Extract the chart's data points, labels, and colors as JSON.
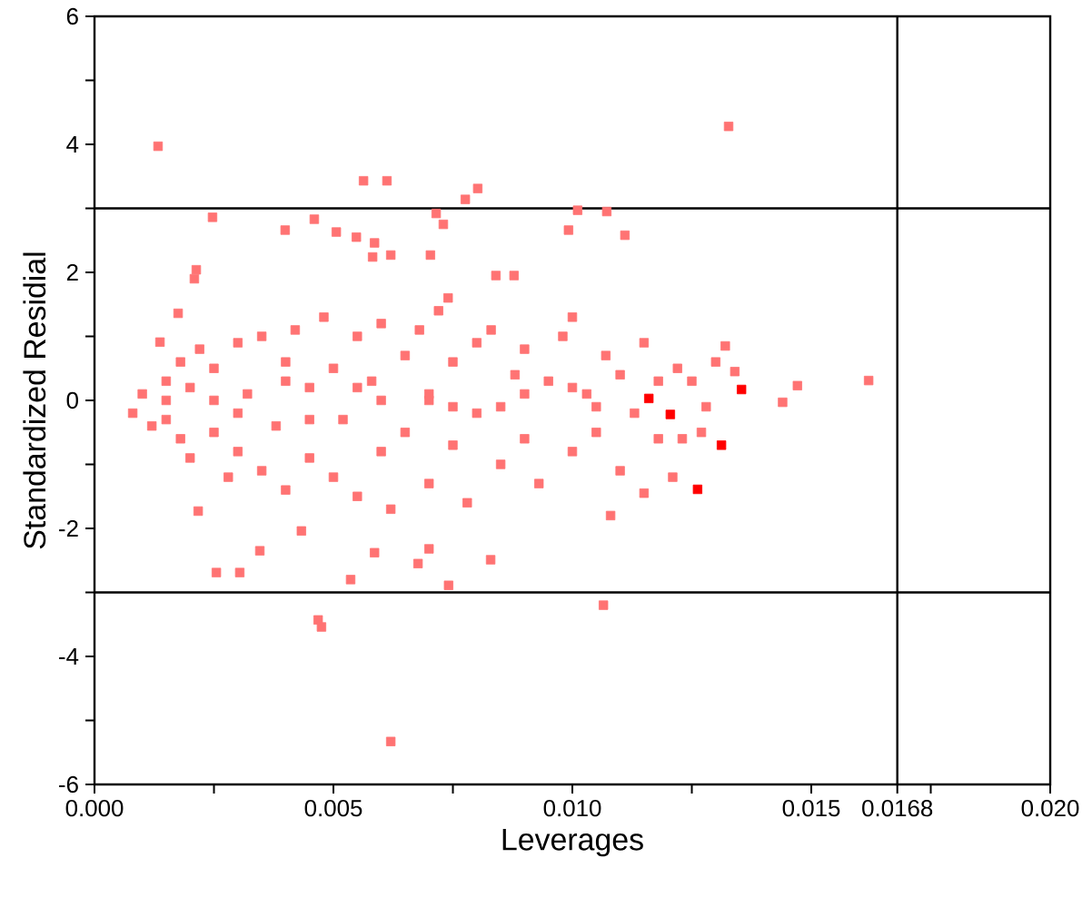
{
  "chart_data": {
    "type": "scatter",
    "xlabel": "Leverages",
    "ylabel": "Standardized Residial",
    "xlim": [
      0,
      0.02
    ],
    "ylim": [
      -6,
      6
    ],
    "xticks": [
      {
        "value": 0,
        "label": "0.000"
      },
      {
        "value": 0.0025,
        "label": null
      },
      {
        "value": 0.005,
        "label": "0.005"
      },
      {
        "value": 0.0075,
        "label": null
      },
      {
        "value": 0.01,
        "label": "0.010"
      },
      {
        "value": 0.0125,
        "label": null
      },
      {
        "value": 0.015,
        "label": "0.015"
      },
      {
        "value": 0.0168,
        "label": "0.0168"
      },
      {
        "value": 0.0175,
        "label": null
      },
      {
        "value": 0.02,
        "label": "0.020"
      }
    ],
    "yticks": [
      -6,
      {
        "value": -5,
        "label": null
      },
      -4,
      {
        "value": -3,
        "label": null
      },
      -2,
      {
        "value": -1,
        "label": null
      },
      0,
      {
        "value": 1,
        "label": null
      },
      2,
      {
        "value": 3,
        "label": null
      },
      4,
      {
        "value": 5,
        "label": null
      },
      6
    ],
    "marker": "square",
    "grid": false,
    "ref_lines": [
      {
        "axis": "y",
        "value": 3,
        "color": "#000000"
      },
      {
        "axis": "y",
        "value": -3,
        "color": "#000000"
      },
      {
        "axis": "x",
        "value": 0.0168,
        "color": "#000000"
      }
    ],
    "series": [
      {
        "color": "#ff7373",
        "x": [
          0.00133,
          0.01327,
          0.00563,
          0.00612,
          0.00776,
          0.00802,
          0.01011,
          0.01072,
          0.00992,
          0.0111,
          0.01471,
          0.0162,
          0.0144,
          0.00468,
          0.00475,
          0.0062,
          0.01065,
          0.00536,
          0.00741,
          0.00304,
          0.00255,
          0.00217,
          0.00346,
          0.00433,
          0.00677,
          0.007,
          0.00829,
          0.00586,
          0.00247,
          0.00175,
          0.00213,
          0.00209,
          0.00399,
          0.0046,
          0.00506,
          0.00548,
          0.00586,
          0.00582,
          0.0062,
          0.00703,
          0.00715,
          0.0073,
          0.0084,
          0.00878,
          0.0074,
          0.00137,
          0.0008,
          0.001,
          0.0012,
          0.0015,
          0.0015,
          0.0018,
          0.0018,
          0.002,
          0.002,
          0.0022,
          0.0025,
          0.0025,
          0.0028,
          0.003,
          0.003,
          0.0032,
          0.0035,
          0.0035,
          0.0038,
          0.004,
          0.004,
          0.0042,
          0.0045,
          0.0045,
          0.0048,
          0.005,
          0.005,
          0.0052,
          0.0055,
          0.0055,
          0.0058,
          0.006,
          0.006,
          0.0062,
          0.0065,
          0.0065,
          0.0068,
          0.007,
          0.007,
          0.0072,
          0.0075,
          0.0075,
          0.0078,
          0.008,
          0.008,
          0.0083,
          0.0085,
          0.0088,
          0.009,
          0.009,
          0.0093,
          0.0095,
          0.0098,
          0.01,
          0.01,
          0.0103,
          0.0105,
          0.0107,
          0.011,
          0.011,
          0.0113,
          0.0115,
          0.0118,
          0.0118,
          0.0122,
          0.0125,
          0.0128,
          0.013,
          0.0132,
          0.0134,
          0.0127,
          0.0123,
          0.0121,
          0.0115,
          0.0108,
          0.0015,
          0.003,
          0.0045,
          0.006,
          0.0075,
          0.009,
          0.0105,
          0.0025,
          0.0055,
          0.0085,
          0.004,
          0.007,
          0.01
        ],
        "values": [
          3.97,
          4.28,
          3.43,
          3.43,
          3.14,
          3.31,
          2.97,
          2.95,
          2.66,
          2.58,
          0.23,
          0.31,
          -0.03,
          -3.43,
          -3.54,
          -5.33,
          -3.2,
          -2.8,
          -2.89,
          -2.69,
          -2.69,
          -1.73,
          -2.35,
          -2.04,
          -2.55,
          -2.32,
          -2.49,
          -2.38,
          2.86,
          1.36,
          2.04,
          1.9,
          2.66,
          2.83,
          2.63,
          2.55,
          2.46,
          2.24,
          2.27,
          2.27,
          2.92,
          2.75,
          1.95,
          1.95,
          1.6,
          0.91,
          -0.2,
          0.1,
          -0.4,
          0.3,
          -0.3,
          0.6,
          -0.6,
          0.2,
          -0.9,
          0.8,
          -0.5,
          0.5,
          -1.2,
          0.9,
          -0.8,
          0.1,
          -1.1,
          1.0,
          -0.4,
          0.6,
          -1.4,
          1.1,
          -0.9,
          0.2,
          1.3,
          -1.2,
          0.5,
          -0.3,
          1.0,
          -1.5,
          0.3,
          -0.8,
          1.2,
          -1.7,
          0.7,
          -0.5,
          1.1,
          -1.3,
          0.0,
          1.4,
          -0.7,
          0.6,
          -1.6,
          0.9,
          -0.2,
          1.1,
          -1.0,
          0.4,
          -0.6,
          0.8,
          -1.3,
          0.3,
          1.0,
          -0.8,
          1.3,
          0.1,
          -0.5,
          0.7,
          -1.1,
          0.4,
          -0.2,
          0.9,
          0.3,
          -0.6,
          0.5,
          0.3,
          -0.1,
          0.6,
          0.85,
          0.45,
          -0.5,
          -0.6,
          -1.2,
          -1.45,
          -1.8,
          0.0,
          -0.2,
          -0.3,
          0.0,
          -0.1,
          0.1,
          -0.1,
          0.0,
          0.2,
          -0.1,
          0.3,
          0.1,
          0.2
        ]
      },
      {
        "color": "#ff0000",
        "x": [
          0.01205,
          0.01312,
          0.01354,
          0.01262,
          0.0116
        ],
        "values": [
          -0.22,
          -0.7,
          0.17,
          -1.39,
          0.03
        ]
      }
    ]
  }
}
